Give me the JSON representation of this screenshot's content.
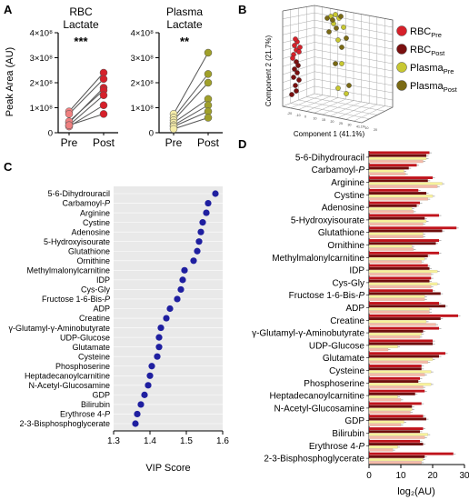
{
  "panels": {
    "A": "A",
    "B": "B",
    "C": "C",
    "D": "D"
  },
  "chart_data": [
    {
      "id": "A1",
      "type": "scatter",
      "title_line1": "RBC",
      "title_line2": "Lactate",
      "significance": "***",
      "ylabel": "Peak Area (AU)",
      "ylim": [
        0,
        400000000
      ],
      "yticks": [
        "0",
        "1×10⁸",
        "2×10⁸",
        "3×10⁸",
        "4×10⁸"
      ],
      "categories": [
        "Pre",
        "Post"
      ],
      "pre_color": "#f08080",
      "post_color": "#d6202a",
      "pairs": [
        [
          85000000,
          240000000
        ],
        [
          75000000,
          215000000
        ],
        [
          40000000,
          180000000
        ],
        [
          45000000,
          170000000
        ],
        [
          30000000,
          150000000
        ],
        [
          25000000,
          110000000
        ],
        [
          30000000,
          75000000
        ]
      ]
    },
    {
      "id": "A2",
      "type": "scatter",
      "title_line1": "Plasma",
      "title_line2": "Lactate",
      "significance": "**",
      "ylim": [
        0,
        400000000
      ],
      "yticks": [
        "0",
        "1×10⁸",
        "2×10⁸",
        "3×10⁸",
        "4×10⁸"
      ],
      "categories": [
        "Pre",
        "Post"
      ],
      "pre_color": "#f5eca8",
      "post_color": "#a0a02a",
      "pairs": [
        [
          75000000,
          320000000
        ],
        [
          60000000,
          235000000
        ],
        [
          50000000,
          200000000
        ],
        [
          40000000,
          135000000
        ],
        [
          30000000,
          110000000
        ],
        [
          25000000,
          85000000
        ],
        [
          15000000,
          60000000
        ]
      ]
    },
    {
      "id": "B",
      "type": "scatter",
      "xlabel": "Component  1 (41.1%)",
      "ylabel": "Component  2 (21.7%)",
      "legend": [
        {
          "label": "RBC",
          "sub": "Pre",
          "color": "#d6202a"
        },
        {
          "label": "RBC",
          "sub": "Post",
          "color": "#7a1010"
        },
        {
          "label": "Plasma",
          "sub": "Pre",
          "color": "#c8c832"
        },
        {
          "label": "Plasma",
          "sub": "Post",
          "color": "#7a6a14"
        }
      ]
    },
    {
      "id": "C",
      "type": "scatter",
      "xlabel": "VIP Score",
      "xlim": [
        1.3,
        1.6
      ],
      "xticks": [
        "1.3",
        "1.4",
        "1.5",
        "1.6"
      ],
      "point_color": "#1f1fa0",
      "categories": [
        "5-6-Dihydrouracil",
        "Carbamoyl-P",
        "Arginine",
        "Cystine",
        "Adenosine",
        "5-Hydroxyisourate",
        "Glutathione",
        "Ornithine",
        "Methylmalonylcarnitine",
        "IDP",
        "Cys-Gly",
        "Fructose 1-6-Bis-P",
        "ADP",
        "Creatine",
        "γ-Glutamyl-γ-Aminobutyrate",
        "UDP-Glucose",
        "Glutamate",
        "Cysteine",
        "Phosphoserine",
        "Heptadecanoylcarnitine",
        "N-Acetyl-Glucosamine",
        "GDP",
        "Bilirubin",
        "Erythrose 4-P",
        "2-3-Bisphosphoglycerate"
      ],
      "values": [
        1.58,
        1.56,
        1.555,
        1.545,
        1.54,
        1.535,
        1.53,
        1.52,
        1.495,
        1.49,
        1.485,
        1.475,
        1.455,
        1.445,
        1.43,
        1.425,
        1.425,
        1.42,
        1.405,
        1.4,
        1.395,
        1.385,
        1.375,
        1.365,
        1.36
      ]
    },
    {
      "id": "D",
      "type": "bar",
      "xlabel": "log₂(AU)",
      "xlim": [
        0,
        30
      ],
      "xticks": [
        "0",
        "10",
        "20",
        "30"
      ],
      "categories": [
        "5-6-Dihydrouracil",
        "Carbamoyl-P",
        "Arginine",
        "Cystine",
        "Adenosine",
        "5-Hydroxyisourate",
        "Glutathione",
        "Ornithine",
        "Methylmalonylcarnitine",
        "IDP",
        "Cys-Gly",
        "Fructose 1-6-Bis-P",
        "ADP",
        "Creatine",
        "γ-Glutamyl-γ-Aminobutyrate",
        "UDP-Glucose",
        "Glutamate",
        "Cysteine",
        "Phosphoserine",
        "Heptadecanoylcarnitine",
        "N-Acetyl-Glucosamine",
        "GDP",
        "Bilirubin",
        "Erythrose 4-P",
        "2-3-Bisphosphoglycerate"
      ],
      "series": [
        {
          "color": "#c0141c",
          "values": [
            19,
            15,
            20,
            15.5,
            16,
            22,
            27.5,
            22,
            22,
            18.5,
            19.5,
            20,
            22,
            28,
            22,
            20,
            24,
            16.5,
            16,
            17.5,
            16.5,
            17,
            17,
            16,
            26.5
          ]
        },
        {
          "color": "#6e0e0e",
          "values": [
            18,
            12.5,
            18.5,
            18,
            15,
            17.5,
            23,
            21,
            18.5,
            19,
            19,
            22.5,
            24,
            22.5,
            17,
            20,
            22,
            16.5,
            15.5,
            14.5,
            13.5,
            18,
            16,
            17,
            17.5
          ]
        },
        {
          "color": "#f7f29a",
          "values": [
            18,
            11,
            23,
            20,
            13.5,
            18,
            17,
            13.5,
            17.5,
            21.5,
            21.5,
            17.5,
            19,
            18,
            16.5,
            9,
            20,
            19.5,
            19.5,
            9,
            13.5,
            11,
            18.5,
            9,
            17
          ]
        },
        {
          "color": "#f5b8a8",
          "values": [
            17,
            11.5,
            21.5,
            18.5,
            14,
            17,
            17,
            14,
            16.5,
            19.5,
            19.5,
            17.5,
            19,
            21,
            16,
            6,
            18.5,
            17.5,
            17,
            10,
            13,
            10,
            17.5,
            7.5,
            16.5
          ]
        }
      ]
    }
  ]
}
